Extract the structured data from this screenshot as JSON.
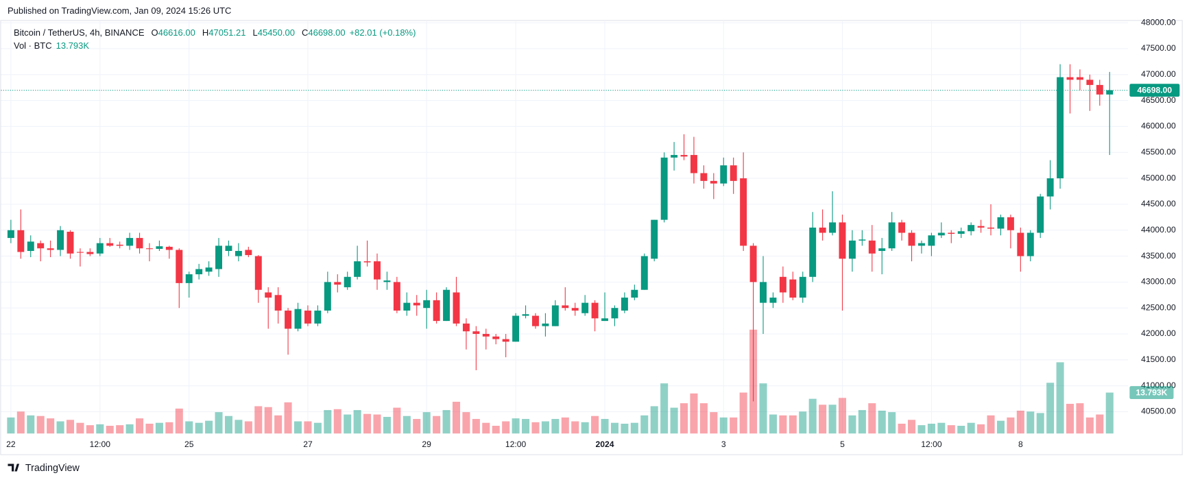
{
  "header": {
    "published": "Published on TradingView.com, Jan 09, 2024 15:26 UTC"
  },
  "footer": {
    "brand": "TradingView"
  },
  "chart_data": {
    "type": "candlestick",
    "title": "Bitcoin / TetherUS, 4h, BINANCE",
    "ohlc_legend": [
      {
        "key": "O",
        "value": "46616.00"
      },
      {
        "key": "H",
        "value": "47051.21"
      },
      {
        "key": "L",
        "value": "45450.00"
      },
      {
        "key": "C",
        "value": "46698.00"
      }
    ],
    "change": "+82.01 (+0.18%)",
    "up_color": "#089981",
    "down_color": "#f23645",
    "grid": true,
    "categories": [
      "22",
      null,
      null,
      null,
      null,
      null,
      null,
      null,
      null,
      "12:00",
      null,
      null,
      null,
      null,
      null,
      null,
      null,
      null,
      "25",
      null,
      null,
      null,
      null,
      null,
      null,
      null,
      null,
      null,
      null,
      null,
      "27",
      null,
      null,
      null,
      null,
      null,
      null,
      null,
      null,
      null,
      null,
      null,
      "29",
      null,
      null,
      null,
      null,
      null,
      null,
      null,
      null,
      "12:00",
      null,
      null,
      null,
      null,
      null,
      null,
      null,
      null,
      "2024",
      null,
      null,
      null,
      null,
      null,
      null,
      null,
      null,
      null,
      null,
      null,
      "3",
      null,
      null,
      null,
      null,
      null,
      null,
      null,
      null,
      null,
      null,
      null,
      "5",
      null,
      null,
      null,
      null,
      null,
      null,
      null,
      null,
      "12:00",
      null,
      null,
      null,
      null,
      null,
      null,
      null,
      null,
      "8",
      null,
      null,
      null,
      null,
      null,
      null,
      null,
      null,
      null
    ],
    "bold_category": "2024",
    "open": [
      43850,
      44000,
      43600,
      43750,
      43650,
      43620,
      43970,
      43580,
      43580,
      43550,
      43750,
      43720,
      43700,
      43850,
      43650,
      43640,
      43680,
      43620,
      42980,
      43150,
      43200,
      43250,
      43600,
      43500,
      43620,
      43500,
      42800,
      42750,
      42450,
      42100,
      42450,
      42200,
      42450,
      43000,
      42900,
      43100,
      43400,
      43400,
      43000,
      43000,
      42450,
      42600,
      42500,
      42650,
      42250,
      42800,
      42200,
      42050,
      42000,
      41950,
      41900,
      41850,
      42350,
      42350,
      42150,
      42150,
      42550,
      42500,
      42400,
      42600,
      42250,
      42300,
      42450,
      42700,
      42850,
      43450,
      44200,
      45400,
      45450,
      45450,
      45100,
      44950,
      44900,
      45250,
      45000,
      43700,
      42600,
      42600,
      43100,
      43050,
      42700,
      43100,
      44050,
      43950,
      44150,
      43450,
      43800,
      43800,
      43600,
      43650,
      44150,
      43950,
      43700,
      43700,
      43900,
      43950,
      43930,
      43980,
      44080,
      44050,
      44030,
      44250,
      43950,
      43500,
      43950,
      44650,
      45000,
      46950,
      46950,
      46900,
      46800,
      46616
    ],
    "high": [
      44200,
      44400,
      43900,
      43800,
      43800,
      44080,
      44000,
      43650,
      43650,
      43850,
      43850,
      43780,
      43950,
      43950,
      43750,
      43800,
      43700,
      43650,
      43200,
      43350,
      43400,
      43850,
      43800,
      43750,
      43680,
      43520,
      42900,
      42900,
      42500,
      42600,
      42550,
      42550,
      43200,
      43150,
      43200,
      43700,
      43800,
      43550,
      43200,
      43100,
      42800,
      42750,
      42850,
      42800,
      42900,
      43100,
      42300,
      42150,
      42100,
      42000,
      42000,
      42400,
      42550,
      42400,
      42400,
      42650,
      42900,
      42600,
      42750,
      42650,
      42800,
      42550,
      42800,
      42950,
      43550,
      44200,
      45500,
      45700,
      45850,
      45800,
      45250,
      45100,
      45400,
      45400,
      45500,
      43750,
      43500,
      42800,
      43300,
      43200,
      43200,
      44350,
      44400,
      44750,
      44300,
      44000,
      44000,
      44100,
      43850,
      44350,
      44200,
      44000,
      43800,
      43950,
      44150,
      44000,
      44050,
      44150,
      44200,
      44500,
      44300,
      44300,
      44050,
      44000,
      44700,
      45350,
      47200,
      47200,
      47100,
      47000,
      46900,
      47051.21
    ],
    "low": [
      43750,
      43450,
      43480,
      43400,
      43480,
      43500,
      43450,
      43300,
      43500,
      43500,
      43680,
      43650,
      43620,
      43550,
      43400,
      43600,
      43450,
      42500,
      42700,
      43050,
      43120,
      43100,
      43500,
      43400,
      43480,
      42600,
      42100,
      42200,
      41600,
      42050,
      42150,
      42150,
      42400,
      42800,
      42850,
      43050,
      43300,
      42850,
      42850,
      42400,
      42350,
      42350,
      42100,
      42200,
      42250,
      42150,
      41700,
      41300,
      41700,
      41800,
      41550,
      41850,
      42300,
      42100,
      41950,
      42150,
      42450,
      42350,
      42350,
      42050,
      42250,
      42150,
      42400,
      42650,
      42850,
      43400,
      44150,
      45150,
      45350,
      44900,
      44800,
      44600,
      44850,
      44700,
      43600,
      40700,
      42000,
      42500,
      42600,
      42650,
      42600,
      43000,
      43800,
      43900,
      42450,
      43200,
      43700,
      43200,
      43150,
      43600,
      43800,
      43400,
      43550,
      43500,
      43850,
      43750,
      43850,
      43900,
      43950,
      43900,
      43900,
      43650,
      43200,
      43400,
      43850,
      44400,
      44800,
      46250,
      46700,
      46300,
      46400,
      45450
    ],
    "close": [
      44000,
      43580,
      43780,
      43650,
      43620,
      44000,
      43550,
      43570,
      43540,
      43750,
      43700,
      43700,
      43850,
      43650,
      43640,
      43690,
      43620,
      42980,
      43150,
      43250,
      43280,
      43700,
      43700,
      43600,
      43520,
      42850,
      42700,
      42450,
      42100,
      42480,
      42200,
      42450,
      43000,
      42950,
      43100,
      43400,
      43380,
      43050,
      43030,
      42450,
      42600,
      42550,
      42650,
      42250,
      42850,
      42200,
      42050,
      42000,
      41950,
      41900,
      41850,
      42350,
      42380,
      42150,
      42200,
      42550,
      42500,
      42450,
      42600,
      42300,
      42300,
      42500,
      42700,
      42850,
      43500,
      44200,
      45400,
      45450,
      45420,
      45100,
      44950,
      44900,
      45250,
      44950,
      43700,
      43000,
      43000,
      42700,
      42800,
      42700,
      43100,
      44050,
      43950,
      44150,
      43450,
      43800,
      43820,
      43550,
      43650,
      44150,
      43950,
      43700,
      43750,
      43900,
      43950,
      43930,
      43980,
      44100,
      44050,
      44030,
      44250,
      44000,
      43500,
      43950,
      44650,
      45000,
      46950,
      46900,
      46900,
      46800,
      46616,
      46698
    ],
    "last_price_label": "46698.00",
    "ylim": [
      40080,
      48040
    ],
    "yticks": [
      {
        "value": 40500,
        "label": "40500.00"
      },
      {
        "value": 41000,
        "label": "41000.00"
      },
      {
        "value": 41500,
        "label": "41500.00"
      },
      {
        "value": 42000,
        "label": "42000.00"
      },
      {
        "value": 42500,
        "label": "42500.00"
      },
      {
        "value": 43000,
        "label": "43000.00"
      },
      {
        "value": 43500,
        "label": "43500.00"
      },
      {
        "value": 44000,
        "label": "44000.00"
      },
      {
        "value": 44500,
        "label": "44500.00"
      },
      {
        "value": 45000,
        "label": "45000.00"
      },
      {
        "value": 45500,
        "label": "45500.00"
      },
      {
        "value": 46000,
        "label": "46000.00"
      },
      {
        "value": 46500,
        "label": "46500.00"
      },
      {
        "value": 47000,
        "label": "47000.00"
      },
      {
        "value": 47500,
        "label": "47500.00"
      },
      {
        "value": 48000,
        "label": "48000.00"
      }
    ],
    "volume": {
      "name": "Vol · BTC",
      "last_label": "13.793K",
      "ylim": [
        0,
        40
      ],
      "values": [
        5.4,
        7.4,
        6.1,
        5.9,
        5.1,
        4.1,
        4.6,
        3.6,
        2.8,
        3.1,
        2.6,
        2.8,
        3.1,
        5.1,
        3.3,
        3.6,
        3.8,
        8.4,
        4.1,
        3.6,
        4.3,
        7.2,
        5.9,
        4.6,
        4.1,
        9.2,
        8.9,
        6.1,
        10.5,
        4.1,
        4.1,
        3.6,
        7.9,
        8.2,
        6.4,
        7.9,
        6.6,
        6.4,
        5.6,
        8.7,
        5.9,
        4.9,
        7.2,
        5.9,
        7.9,
        10.7,
        7.2,
        4.9,
        3.6,
        2.6,
        4.1,
        5.1,
        4.9,
        3.8,
        4.1,
        4.9,
        5.4,
        4.1,
        3.8,
        5.9,
        4.9,
        3.6,
        3.3,
        3.6,
        6.1,
        9.2,
        16.9,
        8.7,
        10.2,
        13.5,
        10.2,
        7.2,
        5.4,
        5.4,
        13.8,
        35.0,
        16.9,
        6.4,
        6.1,
        6.1,
        7.4,
        11.7,
        9.7,
        9.7,
        12.0,
        6.1,
        7.9,
        10.2,
        7.7,
        7.2,
        3.3,
        4.6,
        2.8,
        3.3,
        3.6,
        2.8,
        2.6,
        3.6,
        3.1,
        6.1,
        4.3,
        5.4,
        7.7,
        7.4,
        6.9,
        17.1,
        24.0,
        10.0,
        10.2,
        5.4,
        6.4,
        13.793
      ]
    }
  }
}
